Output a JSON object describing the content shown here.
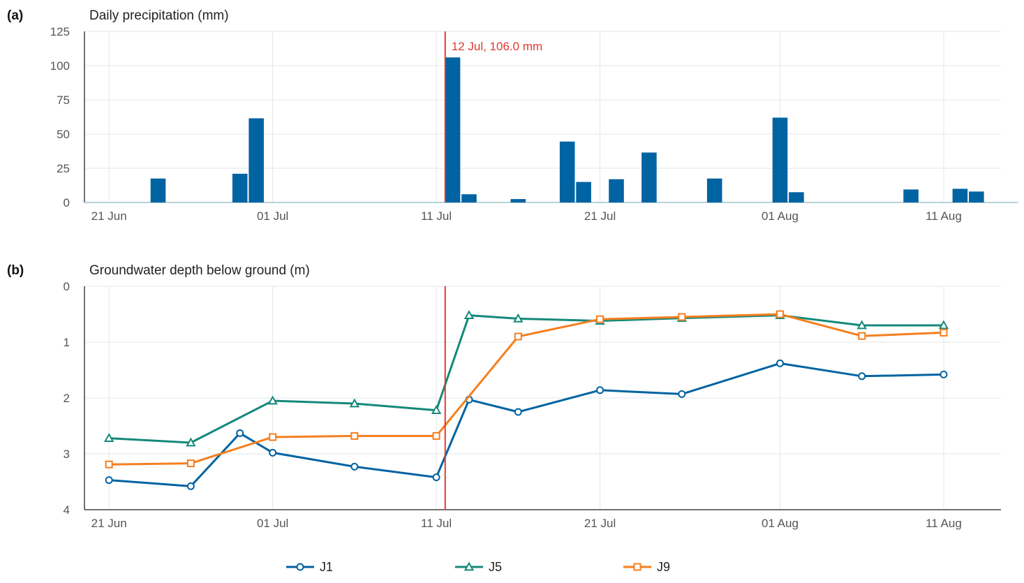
{
  "panels": {
    "a": {
      "letter": "(a)",
      "title": "Daily precipitation (mm)"
    },
    "b": {
      "letter": "(b)",
      "title": "Groundwater depth below ground (m)"
    }
  },
  "annotation": {
    "text": "12 Jul, 106.0 mm",
    "date": "2024-07-12",
    "color": "#e03a2e"
  },
  "colors": {
    "bar": "#0063a2",
    "J1": "#0063a2",
    "J5": "#14897a",
    "J9": "#f47f1f",
    "grid": "#e3e6e8"
  },
  "chart_data": [
    {
      "type": "bar",
      "title": "Daily precipitation (mm)",
      "x_tick_labels": [
        "21 Jun",
        "01 Jul",
        "11 Jul",
        "21 Jul",
        "01 Aug",
        "11 Aug"
      ],
      "x_ticks": [
        "2024-06-21",
        "2024-07-01",
        "2024-07-11",
        "2024-07-21",
        "2024-08-01",
        "2024-08-11"
      ],
      "xlim": [
        "2024-06-20",
        "2024-08-15"
      ],
      "ylim": [
        0,
        125
      ],
      "y_ticks": [
        0,
        25,
        50,
        75,
        100,
        125
      ],
      "grid": true,
      "x": [
        "2024-06-24",
        "2024-06-29",
        "2024-06-30",
        "2024-07-12",
        "2024-07-13",
        "2024-07-16",
        "2024-07-19",
        "2024-07-20",
        "2024-07-22",
        "2024-07-24",
        "2024-07-28",
        "2024-08-01",
        "2024-08-02",
        "2024-08-09",
        "2024-08-12",
        "2024-08-13"
      ],
      "values": [
        17.5,
        21,
        61.5,
        106,
        6,
        2.5,
        44.5,
        15,
        17,
        36.5,
        17.5,
        62,
        7.5,
        9.5,
        10,
        8
      ]
    },
    {
      "type": "line",
      "title": "Groundwater depth below ground (m)",
      "x_tick_labels": [
        "21 Jun",
        "01 Jul",
        "11 Jul",
        "21 Jul",
        "01 Aug",
        "11 Aug"
      ],
      "x_ticks": [
        "2024-06-21",
        "2024-07-01",
        "2024-07-11",
        "2024-07-21",
        "2024-08-01",
        "2024-08-11"
      ],
      "xlim": [
        "2024-06-20",
        "2024-08-15"
      ],
      "ylim": [
        0,
        4
      ],
      "y_inverted": true,
      "y_ticks": [
        0,
        1,
        2,
        3,
        4
      ],
      "grid": true,
      "legend": "bottom",
      "series": [
        {
          "name": "J1",
          "marker": "circle",
          "x": [
            "2024-06-21",
            "2024-06-26",
            "2024-06-29",
            "2024-07-01",
            "2024-07-06",
            "2024-07-11",
            "2024-07-13",
            "2024-07-16",
            "2024-07-21",
            "2024-07-26",
            "2024-08-01",
            "2024-08-06",
            "2024-08-11"
          ],
          "values": [
            3.47,
            3.58,
            2.63,
            2.98,
            3.23,
            3.42,
            2.03,
            2.25,
            1.86,
            1.93,
            1.38,
            1.61,
            1.58
          ]
        },
        {
          "name": "J5",
          "marker": "triangle",
          "x": [
            "2024-06-21",
            "2024-06-26",
            "2024-07-01",
            "2024-07-06",
            "2024-07-11",
            "2024-07-13",
            "2024-07-16",
            "2024-07-21",
            "2024-07-26",
            "2024-08-01",
            "2024-08-06",
            "2024-08-11"
          ],
          "values": [
            2.72,
            2.8,
            2.05,
            2.1,
            2.22,
            0.52,
            0.58,
            0.62,
            0.57,
            0.52,
            0.7,
            0.7
          ]
        },
        {
          "name": "J9",
          "marker": "square",
          "x": [
            "2024-06-21",
            "2024-06-26",
            "2024-07-01",
            "2024-07-06",
            "2024-07-11",
            "2024-07-16",
            "2024-07-21",
            "2024-07-26",
            "2024-08-01",
            "2024-08-06",
            "2024-08-11"
          ],
          "values": [
            3.19,
            3.17,
            2.7,
            2.68,
            2.68,
            0.9,
            0.59,
            0.55,
            0.5,
            0.89,
            0.83
          ]
        }
      ]
    }
  ]
}
